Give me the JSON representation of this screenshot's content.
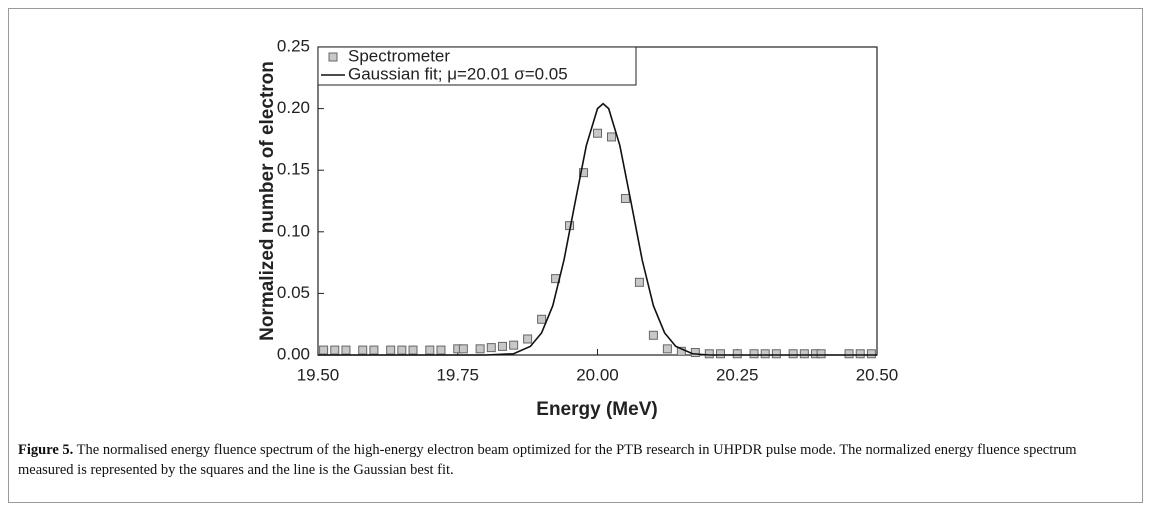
{
  "chart_data": {
    "type": "scatter",
    "xlabel": "Energy (MeV)",
    "ylabel": "Normalized number of electron",
    "xlim": [
      19.5,
      20.5
    ],
    "ylim": [
      0,
      0.25
    ],
    "xticks": [
      {
        "value": 19.5,
        "label": "19.50"
      },
      {
        "value": 19.75,
        "label": "19.75"
      },
      {
        "value": 20,
        "label": "20.00"
      },
      {
        "value": 20.25,
        "label": "20.25"
      },
      {
        "value": 20.5,
        "label": "20.50"
      }
    ],
    "yticks": [
      {
        "value": 0,
        "label": "0.00"
      },
      {
        "value": 0.05,
        "label": "0.05"
      },
      {
        "value": 0.1,
        "label": "0.10"
      },
      {
        "value": 0.15,
        "label": "0.15"
      },
      {
        "value": 0.2,
        "label": "0.20"
      },
      {
        "value": 0.25,
        "label": "0.25"
      }
    ],
    "legend": "upper left",
    "series": [
      {
        "name": "Spectrometer",
        "type": "scatter",
        "color": "#c8c8c8",
        "x": [
          19.51,
          19.53,
          19.55,
          19.58,
          19.6,
          19.63,
          19.65,
          19.67,
          19.7,
          19.72,
          19.75,
          19.76,
          19.79,
          19.81,
          19.83,
          19.85,
          19.875,
          19.9,
          19.925,
          19.95,
          19.975,
          20.0,
          20.025,
          20.05,
          20.075,
          20.1,
          20.125,
          20.15,
          20.175,
          20.2,
          20.22,
          20.25,
          20.28,
          20.3,
          20.32,
          20.35,
          20.37,
          20.39,
          20.4,
          20.45,
          20.47,
          20.49
        ],
        "values": [
          0.004,
          0.004,
          0.004,
          0.004,
          0.004,
          0.004,
          0.004,
          0.004,
          0.004,
          0.004,
          0.005,
          0.005,
          0.005,
          0.006,
          0.007,
          0.008,
          0.013,
          0.029,
          0.062,
          0.105,
          0.148,
          0.18,
          0.177,
          0.127,
          0.059,
          0.016,
          0.005,
          0.003,
          0.002,
          0.001,
          0.001,
          0.001,
          0.001,
          0.001,
          0.001,
          0.001,
          0.001,
          0.001,
          0.001,
          0.001,
          0.001,
          0.001
        ]
      },
      {
        "name": "Gaussian fit; μ=20.01 σ=0.05",
        "type": "line",
        "color": "#111111",
        "x": [
          19.5,
          19.8,
          19.85,
          19.88,
          19.9,
          19.92,
          19.94,
          19.96,
          19.98,
          20.0,
          20.01,
          20.02,
          20.04,
          20.06,
          20.08,
          20.1,
          20.12,
          20.14,
          20.17,
          20.2,
          20.5
        ],
        "values": [
          0,
          0,
          0.001,
          0.007,
          0.018,
          0.04,
          0.077,
          0.124,
          0.17,
          0.2,
          0.204,
          0.2,
          0.17,
          0.124,
          0.077,
          0.04,
          0.018,
          0.007,
          0.001,
          0,
          0
        ]
      }
    ],
    "caption": {
      "label": "Figure 5.",
      "text": " The normalised energy fluence spectrum of the high-energy electron beam optimized for the PTB research in UHPDR pulse mode. The normalized energy fluence spectrum measured is represented by the squares and the line is the Gaussian best fit."
    }
  }
}
